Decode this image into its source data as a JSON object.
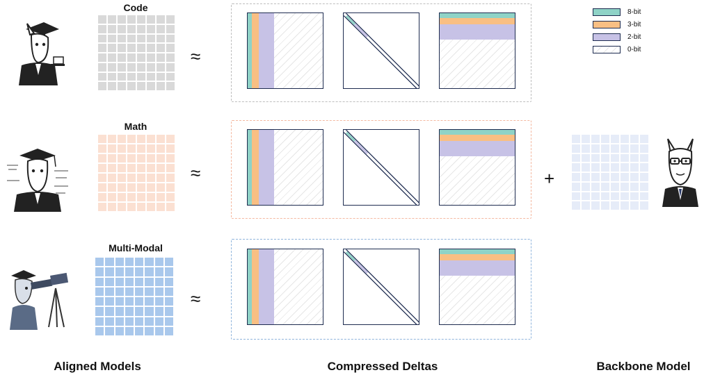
{
  "models": [
    {
      "name": "Code",
      "matrix_color": "#d9d9d9"
    },
    {
      "name": "Math",
      "matrix_color": "#fbe0d2"
    },
    {
      "name": "Multi-Modal",
      "matrix_color": "#a9c8ec"
    }
  ],
  "approx_symbol": "≈",
  "plus_symbol": "+",
  "legend": [
    {
      "label": "8-bit",
      "color": "#8fd3c7"
    },
    {
      "label": "3-bit",
      "color": "#f9bf83"
    },
    {
      "label": "2-bit",
      "color": "#c7c2e6"
    },
    {
      "label": "0-bit",
      "color": "#ffffff"
    }
  ],
  "group_border_colors": [
    "#bdbdbd",
    "#f4b8a0",
    "#8fb4dc"
  ],
  "backbone_matrix_color": "#e6ecf8",
  "bottom_labels": {
    "aligned": "Aligned Models",
    "compressed": "Compressed Deltas",
    "backbone": "Backbone Model"
  }
}
